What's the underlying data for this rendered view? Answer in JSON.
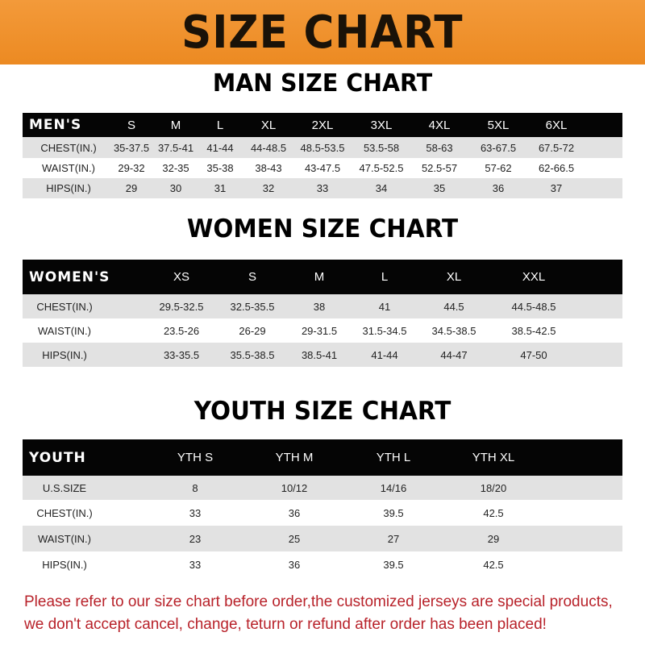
{
  "banner": {
    "title": "SIZE CHART",
    "color": "#ef8f2a"
  },
  "men": {
    "title": "MAN SIZE CHART",
    "headers": [
      "MEN'S",
      "S",
      "M",
      "L",
      "XL",
      "2XL",
      "3XL",
      "4XL",
      "5XL",
      "6XL"
    ],
    "rows": [
      [
        "CHEST(IN.)",
        "35-37.5",
        "37.5-41",
        "41-44",
        "44-48.5",
        "48.5-53.5",
        "53.5-58",
        "58-63",
        "63-67.5",
        "67.5-72"
      ],
      [
        "WAIST(IN.)",
        "29-32",
        "32-35",
        "35-38",
        "38-43",
        "43-47.5",
        "47.5-52.5",
        "52.5-57",
        "57-62",
        "62-66.5"
      ],
      [
        "HIPS(IN.)",
        "29",
        "30",
        "31",
        "32",
        "33",
        "34",
        "35",
        "36",
        "37"
      ]
    ]
  },
  "women": {
    "title": "WOMEN SIZE CHART",
    "headers": [
      "WOMEN'S",
      "XS",
      "S",
      "M",
      "L",
      "XL",
      "XXL"
    ],
    "rows": [
      [
        "CHEST(IN.)",
        "29.5-32.5",
        "32.5-35.5",
        "38",
        "41",
        "44.5",
        "44.5-48.5"
      ],
      [
        "WAIST(IN.)",
        "23.5-26",
        "26-29",
        "29-31.5",
        "31.5-34.5",
        "34.5-38.5",
        "38.5-42.5"
      ],
      [
        "HIPS(IN.)",
        "33-35.5",
        "35.5-38.5",
        "38.5-41",
        "41-44",
        "44-47",
        "47-50"
      ]
    ]
  },
  "youth": {
    "title": "YOUTH SIZE CHART",
    "headers": [
      "YOUTH",
      "YTH S",
      "YTH M",
      "YTH L",
      "YTH XL"
    ],
    "rows": [
      [
        "U.S.SIZE",
        "8",
        "10/12",
        "14/16",
        "18/20"
      ],
      [
        "CHEST(IN.)",
        "33",
        "36",
        "39.5",
        "42.5"
      ],
      [
        "WAIST(IN.)",
        "23",
        "25",
        "27",
        "29"
      ],
      [
        "HIPS(IN.)",
        "33",
        "36",
        "39.5",
        "42.5"
      ]
    ]
  },
  "notice": {
    "line1": "Please refer to our size chart before order,the customized jerseys are special products,",
    "line2": "we don't accept cancel, change, teturn or refund after order has been placed!",
    "color": "#b8222a"
  }
}
